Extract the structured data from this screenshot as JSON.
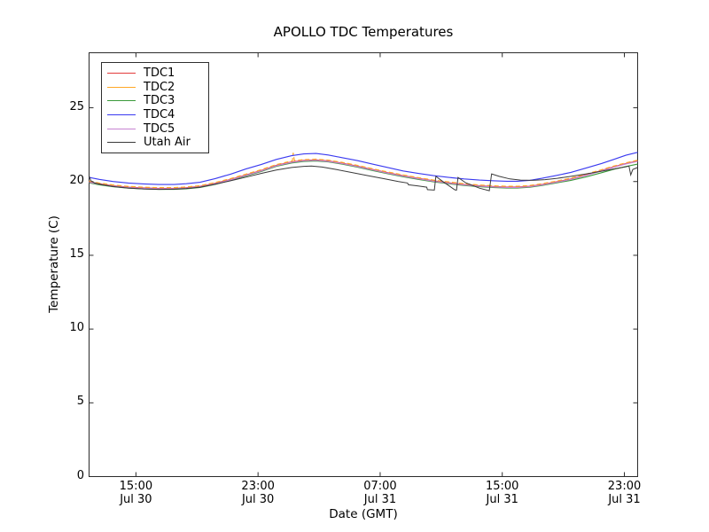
{
  "chart_data": {
    "type": "line",
    "title": "APOLLO TDC Temperatures",
    "xlabel": "Date (GMT)",
    "ylabel": "Temperature (C)",
    "background": "#ffffff",
    "frame_color": "#2b2b2b",
    "grid": false,
    "legend_position": "upper left",
    "x_unit": "hours since Jul 30 00:00 GMT",
    "xlim": [
      11.93,
      47.87
    ],
    "ylim": [
      0,
      28.73
    ],
    "yticks": [
      0,
      5,
      10,
      15,
      20,
      25
    ],
    "xticks": [
      {
        "value": 15,
        "line1": "15:00",
        "line2": "Jul 30"
      },
      {
        "value": 23,
        "line1": "23:00",
        "line2": "Jul 30"
      },
      {
        "value": 31,
        "line1": "07:00",
        "line2": "Jul 31"
      },
      {
        "value": 39,
        "line1": "15:00",
        "line2": "Jul 31"
      },
      {
        "value": 47,
        "line1": "23:00",
        "line2": "Jul 31"
      }
    ],
    "series": [
      {
        "name": "TDC1",
        "color": "#e33b3b",
        "points": [
          [
            11.93,
            19.98
          ],
          [
            12.6,
            19.85
          ],
          [
            13.5,
            19.72
          ],
          [
            14.5,
            19.62
          ],
          [
            15.5,
            19.57
          ],
          [
            16.5,
            19.54
          ],
          [
            17.5,
            19.54
          ],
          [
            18.3,
            19.58
          ],
          [
            19.2,
            19.67
          ],
          [
            20.2,
            19.88
          ],
          [
            21.2,
            20.15
          ],
          [
            22.2,
            20.45
          ],
          [
            23.2,
            20.75
          ],
          [
            24.2,
            21.1
          ],
          [
            25.2,
            21.33
          ],
          [
            26.0,
            21.44
          ],
          [
            26.8,
            21.47
          ],
          [
            27.6,
            21.4
          ],
          [
            28.5,
            21.25
          ],
          [
            29.5,
            21.05
          ],
          [
            30.5,
            20.82
          ],
          [
            31.5,
            20.6
          ],
          [
            32.5,
            20.4
          ],
          [
            33.5,
            20.22
          ],
          [
            34.5,
            20.05
          ],
          [
            35.5,
            19.92
          ],
          [
            36.5,
            19.8
          ],
          [
            37.5,
            19.72
          ],
          [
            38.5,
            19.66
          ],
          [
            39.3,
            19.63
          ],
          [
            40.0,
            19.63
          ],
          [
            40.8,
            19.68
          ],
          [
            41.6,
            19.8
          ],
          [
            42.5,
            19.97
          ],
          [
            43.5,
            20.18
          ],
          [
            44.5,
            20.45
          ],
          [
            45.5,
            20.75
          ],
          [
            46.3,
            21.0
          ],
          [
            47.1,
            21.22
          ],
          [
            47.87,
            21.4
          ]
        ]
      },
      {
        "name": "TDC2",
        "color": "#ffa726",
        "dash": [
          5,
          3
        ],
        "points": [
          [
            11.93,
            20.03
          ],
          [
            12.6,
            19.9
          ],
          [
            13.5,
            19.77
          ],
          [
            14.5,
            19.67
          ],
          [
            15.5,
            19.62
          ],
          [
            16.5,
            19.59
          ],
          [
            17.5,
            19.59
          ],
          [
            18.3,
            19.63
          ],
          [
            19.2,
            19.72
          ],
          [
            20.2,
            19.93
          ],
          [
            21.2,
            20.2
          ],
          [
            22.2,
            20.5
          ],
          [
            23.2,
            20.8
          ],
          [
            24.2,
            21.15
          ],
          [
            25.1,
            21.37
          ],
          [
            25.25,
            21.4
          ],
          [
            25.3,
            21.95
          ],
          [
            25.38,
            21.42
          ],
          [
            26.0,
            21.49
          ],
          [
            26.8,
            21.52
          ],
          [
            27.6,
            21.45
          ],
          [
            28.5,
            21.3
          ],
          [
            29.5,
            21.1
          ],
          [
            30.5,
            20.87
          ],
          [
            31.5,
            20.65
          ],
          [
            32.5,
            20.45
          ],
          [
            33.5,
            20.27
          ],
          [
            34.5,
            20.1
          ],
          [
            35.5,
            19.97
          ],
          [
            36.5,
            19.85
          ],
          [
            37.5,
            19.77
          ],
          [
            38.5,
            19.71
          ],
          [
            39.3,
            19.68
          ],
          [
            40.0,
            19.68
          ],
          [
            40.8,
            19.73
          ],
          [
            41.6,
            19.85
          ],
          [
            42.5,
            20.02
          ],
          [
            43.5,
            20.23
          ],
          [
            44.5,
            20.5
          ],
          [
            45.5,
            20.8
          ],
          [
            46.3,
            21.05
          ],
          [
            47.1,
            21.27
          ],
          [
            47.87,
            21.45
          ]
        ]
      },
      {
        "name": "TDC3",
        "color": "#3a9a3a",
        "points": [
          [
            11.93,
            19.91
          ],
          [
            12.6,
            19.78
          ],
          [
            13.5,
            19.65
          ],
          [
            14.5,
            19.55
          ],
          [
            15.5,
            19.5
          ],
          [
            16.5,
            19.47
          ],
          [
            17.5,
            19.47
          ],
          [
            18.3,
            19.51
          ],
          [
            19.2,
            19.6
          ],
          [
            20.2,
            19.81
          ],
          [
            21.2,
            20.08
          ],
          [
            22.2,
            20.38
          ],
          [
            23.2,
            20.68
          ],
          [
            24.2,
            21.03
          ],
          [
            25.2,
            21.26
          ],
          [
            26.0,
            21.37
          ],
          [
            26.8,
            21.4
          ],
          [
            27.6,
            21.33
          ],
          [
            28.5,
            21.18
          ],
          [
            29.5,
            20.98
          ],
          [
            30.5,
            20.75
          ],
          [
            31.5,
            20.53
          ],
          [
            32.5,
            20.33
          ],
          [
            33.5,
            20.15
          ],
          [
            34.5,
            19.98
          ],
          [
            35.5,
            19.85
          ],
          [
            36.5,
            19.73
          ],
          [
            37.5,
            19.65
          ],
          [
            38.5,
            19.59
          ],
          [
            39.3,
            19.56
          ],
          [
            40.0,
            19.56
          ],
          [
            40.8,
            19.61
          ],
          [
            41.6,
            19.73
          ],
          [
            42.5,
            19.9
          ],
          [
            43.5,
            20.08
          ],
          [
            44.5,
            20.32
          ],
          [
            45.5,
            20.6
          ],
          [
            46.3,
            20.83
          ],
          [
            47.1,
            21.02
          ],
          [
            47.87,
            21.18
          ]
        ]
      },
      {
        "name": "TDC4",
        "color": "#3a3af0",
        "points": [
          [
            11.93,
            20.28
          ],
          [
            12.6,
            20.15
          ],
          [
            13.5,
            20.0
          ],
          [
            14.5,
            19.9
          ],
          [
            15.5,
            19.84
          ],
          [
            16.5,
            19.8
          ],
          [
            17.5,
            19.8
          ],
          [
            18.3,
            19.85
          ],
          [
            19.2,
            19.95
          ],
          [
            20.2,
            20.2
          ],
          [
            21.2,
            20.5
          ],
          [
            22.2,
            20.85
          ],
          [
            23.2,
            21.15
          ],
          [
            24.2,
            21.5
          ],
          [
            25.2,
            21.75
          ],
          [
            26.0,
            21.87
          ],
          [
            26.8,
            21.9
          ],
          [
            27.6,
            21.8
          ],
          [
            28.5,
            21.62
          ],
          [
            29.5,
            21.42
          ],
          [
            30.5,
            21.18
          ],
          [
            31.5,
            20.95
          ],
          [
            32.5,
            20.72
          ],
          [
            33.5,
            20.55
          ],
          [
            34.5,
            20.4
          ],
          [
            35.5,
            20.28
          ],
          [
            36.5,
            20.18
          ],
          [
            37.5,
            20.1
          ],
          [
            38.5,
            20.05
          ],
          [
            39.3,
            20.02
          ],
          [
            40.0,
            20.02
          ],
          [
            40.8,
            20.08
          ],
          [
            41.6,
            20.22
          ],
          [
            42.5,
            20.4
          ],
          [
            43.5,
            20.62
          ],
          [
            44.5,
            20.92
          ],
          [
            45.5,
            21.22
          ],
          [
            46.3,
            21.5
          ],
          [
            47.1,
            21.78
          ],
          [
            47.87,
            21.98
          ]
        ]
      },
      {
        "name": "TDC5",
        "color": "#c783d1",
        "points": [
          [
            11.93,
            19.95
          ],
          [
            12.6,
            19.82
          ],
          [
            13.5,
            19.69
          ],
          [
            14.5,
            19.59
          ],
          [
            15.5,
            19.54
          ],
          [
            16.5,
            19.51
          ],
          [
            17.5,
            19.51
          ],
          [
            18.3,
            19.55
          ],
          [
            19.2,
            19.64
          ],
          [
            20.2,
            19.85
          ],
          [
            21.2,
            20.12
          ],
          [
            22.2,
            20.42
          ],
          [
            23.2,
            20.72
          ],
          [
            24.2,
            21.07
          ],
          [
            25.2,
            21.3
          ],
          [
            26.0,
            21.41
          ],
          [
            26.8,
            21.44
          ],
          [
            27.6,
            21.37
          ],
          [
            28.5,
            21.22
          ],
          [
            29.5,
            21.02
          ],
          [
            30.5,
            20.79
          ],
          [
            31.5,
            20.57
          ],
          [
            32.5,
            20.37
          ],
          [
            33.5,
            20.19
          ],
          [
            34.5,
            20.02
          ],
          [
            35.5,
            19.89
          ],
          [
            36.5,
            19.77
          ],
          [
            37.5,
            19.69
          ],
          [
            38.5,
            19.63
          ],
          [
            39.3,
            19.6
          ],
          [
            40.0,
            19.6
          ],
          [
            40.8,
            19.65
          ],
          [
            41.6,
            19.77
          ],
          [
            42.5,
            19.94
          ],
          [
            43.5,
            20.15
          ],
          [
            44.5,
            20.42
          ],
          [
            45.5,
            20.72
          ],
          [
            46.3,
            20.97
          ],
          [
            47.1,
            21.19
          ],
          [
            47.87,
            21.37
          ]
        ]
      },
      {
        "name": "Utah Air",
        "color": "#3a3a3a",
        "points": [
          [
            11.93,
            20.38
          ],
          [
            12.05,
            20.05
          ],
          [
            12.3,
            19.9
          ],
          [
            12.8,
            19.78
          ],
          [
            13.5,
            19.66
          ],
          [
            14.5,
            19.56
          ],
          [
            15.5,
            19.5
          ],
          [
            16.5,
            19.47
          ],
          [
            17.5,
            19.48
          ],
          [
            18.3,
            19.53
          ],
          [
            19.2,
            19.62
          ],
          [
            20.2,
            19.82
          ],
          [
            21.2,
            20.05
          ],
          [
            22.2,
            20.3
          ],
          [
            23.2,
            20.55
          ],
          [
            24.2,
            20.78
          ],
          [
            25.2,
            20.95
          ],
          [
            26.0,
            21.03
          ],
          [
            26.5,
            21.05
          ],
          [
            27.2,
            20.98
          ],
          [
            28.2,
            20.8
          ],
          [
            29.2,
            20.6
          ],
          [
            30.2,
            20.4
          ],
          [
            31.2,
            20.2
          ],
          [
            32.2,
            20.0
          ],
          [
            32.8,
            19.9
          ],
          [
            32.85,
            19.78
          ],
          [
            33.5,
            19.7
          ],
          [
            34.05,
            19.62
          ],
          [
            34.1,
            19.45
          ],
          [
            34.55,
            19.42
          ],
          [
            34.65,
            20.35
          ],
          [
            35.1,
            20.0
          ],
          [
            35.9,
            19.44
          ],
          [
            36.0,
            19.42
          ],
          [
            36.1,
            20.28
          ],
          [
            36.6,
            19.92
          ],
          [
            37.5,
            19.55
          ],
          [
            38.15,
            19.38
          ],
          [
            38.3,
            20.52
          ],
          [
            38.8,
            20.35
          ],
          [
            39.5,
            20.18
          ],
          [
            40.2,
            20.1
          ],
          [
            41.0,
            20.08
          ],
          [
            41.8,
            20.13
          ],
          [
            42.6,
            20.22
          ],
          [
            43.5,
            20.35
          ],
          [
            44.5,
            20.52
          ],
          [
            45.5,
            20.7
          ],
          [
            46.4,
            20.87
          ],
          [
            47.1,
            21.0
          ],
          [
            47.3,
            21.05
          ],
          [
            47.42,
            20.45
          ],
          [
            47.55,
            20.82
          ],
          [
            47.87,
            20.95
          ]
        ]
      }
    ]
  }
}
